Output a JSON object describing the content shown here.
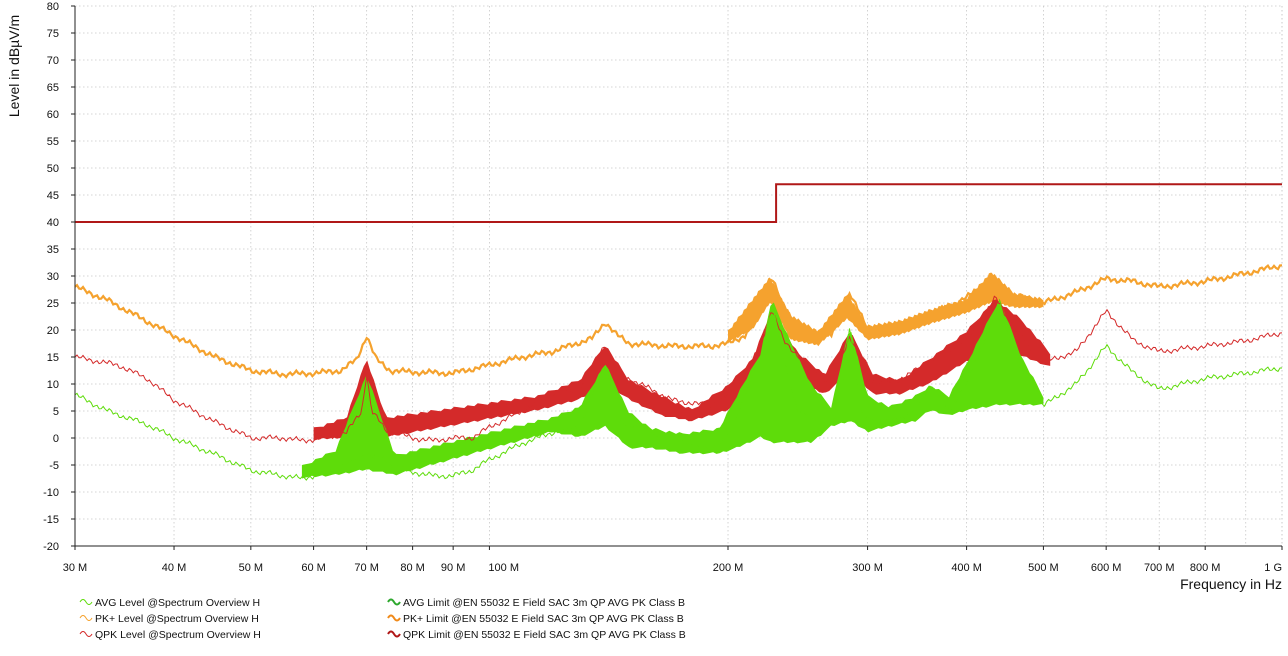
{
  "chart_data": {
    "type": "line",
    "title": "",
    "xlabel": "Frequency in Hz",
    "ylabel": "Level in dBµV/m",
    "xscale": "log",
    "xlim": [
      30000000,
      1000000000
    ],
    "ylim": [
      -20,
      80
    ],
    "grid": true,
    "y_ticks": [
      -20,
      -15,
      -10,
      -5,
      0,
      5,
      10,
      15,
      20,
      25,
      30,
      35,
      40,
      45,
      50,
      55,
      60,
      65,
      70,
      75,
      80
    ],
    "x_ticks": [
      {
        "value": 30000000,
        "label": "30 M"
      },
      {
        "value": 40000000,
        "label": "40 M"
      },
      {
        "value": 50000000,
        "label": "50 M"
      },
      {
        "value": 60000000,
        "label": "60 M"
      },
      {
        "value": 70000000,
        "label": "70 M"
      },
      {
        "value": 80000000,
        "label": "80 M"
      },
      {
        "value": 90000000,
        "label": "90 M"
      },
      {
        "value": 100000000,
        "label": "100 M"
      },
      {
        "value": 200000000,
        "label": "200 M"
      },
      {
        "value": 300000000,
        "label": "300 M"
      },
      {
        "value": 400000000,
        "label": "400 M"
      },
      {
        "value": 500000000,
        "label": "500 M"
      },
      {
        "value": 600000000,
        "label": "600 M"
      },
      {
        "value": 700000000,
        "label": "700 M"
      },
      {
        "value": 800000000,
        "label": "800 M"
      },
      {
        "value": 1000000000,
        "label": "1 G"
      }
    ],
    "series": [
      {
        "name": "PK+ Level @Spectrum Overview H",
        "kind": "level",
        "color": "#f5a22e",
        "points": [
          [
            30,
            28
          ],
          [
            33,
            25.5
          ],
          [
            36,
            22.5
          ],
          [
            40,
            19
          ],
          [
            45,
            15
          ],
          [
            50,
            12.5
          ],
          [
            55,
            11.8
          ],
          [
            60,
            12
          ],
          [
            65,
            12.5
          ],
          [
            68,
            14.5
          ],
          [
            70,
            19
          ],
          [
            72,
            14.5
          ],
          [
            75,
            12.5
          ],
          [
            80,
            12.2
          ],
          [
            90,
            12
          ],
          [
            100,
            13.5
          ],
          [
            110,
            15
          ],
          [
            120,
            16
          ],
          [
            135,
            18.5
          ],
          [
            140,
            21.5
          ],
          [
            145,
            19
          ],
          [
            150,
            17.5
          ],
          [
            170,
            17
          ],
          [
            190,
            17
          ],
          [
            200,
            17.5
          ],
          [
            210,
            19
          ],
          [
            220,
            24
          ],
          [
            227,
            30
          ],
          [
            235,
            24
          ],
          [
            250,
            20
          ],
          [
            270,
            19
          ],
          [
            285,
            27
          ],
          [
            300,
            20
          ],
          [
            320,
            20
          ],
          [
            350,
            22
          ],
          [
            400,
            26
          ],
          [
            430,
            29.5
          ],
          [
            445,
            27
          ],
          [
            500,
            25
          ],
          [
            550,
            27
          ],
          [
            600,
            29.5
          ],
          [
            650,
            29
          ],
          [
            700,
            28
          ],
          [
            800,
            29
          ],
          [
            900,
            30.5
          ],
          [
            1000,
            32
          ]
        ],
        "envelope": [
          [
            200,
            17.5,
            20
          ],
          [
            215,
            20,
            26
          ],
          [
            226,
            25,
            30
          ],
          [
            240,
            18,
            23
          ],
          [
            260,
            17,
            20
          ],
          [
            283,
            22,
            27
          ],
          [
            300,
            18,
            21
          ],
          [
            330,
            19,
            22
          ],
          [
            360,
            21,
            24
          ],
          [
            400,
            23,
            26
          ],
          [
            430,
            25,
            31
          ],
          [
            460,
            24,
            27
          ],
          [
            500,
            24,
            26
          ]
        ]
      },
      {
        "name": "QPK Level @Spectrum Overview H",
        "kind": "level",
        "color": "#d42a2a",
        "points": [
          [
            30,
            15
          ],
          [
            34,
            13.5
          ],
          [
            37,
            11
          ],
          [
            40,
            7
          ],
          [
            45,
            3
          ],
          [
            50,
            0
          ],
          [
            55,
            0
          ],
          [
            58,
            -0.5
          ],
          [
            62,
            0
          ],
          [
            66,
            1
          ],
          [
            69,
            5
          ],
          [
            70,
            12
          ],
          [
            71,
            5
          ],
          [
            74,
            1.5
          ],
          [
            80,
            0
          ],
          [
            85,
            -0.5
          ],
          [
            90,
            0
          ],
          [
            95,
            0
          ],
          [
            100,
            2
          ],
          [
            110,
            5
          ],
          [
            120,
            8
          ],
          [
            130,
            9
          ],
          [
            140,
            17.5
          ],
          [
            145,
            12
          ],
          [
            160,
            9
          ],
          [
            170,
            7
          ],
          [
            190,
            6
          ],
          [
            200,
            8
          ],
          [
            210,
            12
          ],
          [
            220,
            17
          ],
          [
            227,
            24
          ],
          [
            235,
            18
          ],
          [
            250,
            14
          ],
          [
            270,
            10
          ],
          [
            285,
            19
          ],
          [
            300,
            11
          ],
          [
            320,
            10
          ],
          [
            350,
            13
          ],
          [
            400,
            18
          ],
          [
            435,
            26
          ],
          [
            460,
            20
          ],
          [
            500,
            14
          ],
          [
            550,
            16
          ],
          [
            600,
            23.5
          ],
          [
            650,
            18
          ],
          [
            700,
            16
          ],
          [
            800,
            17
          ],
          [
            900,
            18
          ],
          [
            1000,
            19.5
          ]
        ],
        "envelope": [
          [
            60,
            -0.5,
            2
          ],
          [
            66,
            0,
            4
          ],
          [
            70,
            2,
            15
          ],
          [
            74,
            0,
            4
          ],
          [
            115,
            5,
            8
          ],
          [
            130,
            7,
            11
          ],
          [
            140,
            10,
            17.5
          ],
          [
            150,
            7,
            11
          ],
          [
            165,
            4,
            8
          ],
          [
            180,
            3,
            5.5
          ],
          [
            200,
            5,
            10
          ],
          [
            215,
            9,
            15
          ],
          [
            227,
            14,
            24
          ],
          [
            245,
            10,
            16
          ],
          [
            265,
            8,
            12
          ],
          [
            285,
            12,
            20
          ],
          [
            305,
            8,
            12
          ],
          [
            330,
            8,
            11
          ],
          [
            360,
            10,
            15
          ],
          [
            400,
            14,
            20
          ],
          [
            435,
            16,
            26
          ],
          [
            470,
            15,
            22
          ],
          [
            510,
            13,
            16
          ]
        ]
      },
      {
        "name": "AVG Level @Spectrum Overview H",
        "kind": "level",
        "color": "#5edc0a",
        "points": [
          [
            30,
            8
          ],
          [
            33,
            5
          ],
          [
            37,
            2.5
          ],
          [
            40,
            0
          ],
          [
            45,
            -3
          ],
          [
            50,
            -6
          ],
          [
            55,
            -7
          ],
          [
            58,
            -7.5
          ],
          [
            62,
            -6.5
          ],
          [
            66,
            -5
          ],
          [
            70,
            -3
          ],
          [
            74,
            -4
          ],
          [
            78,
            -6
          ],
          [
            85,
            -7
          ],
          [
            90,
            -7
          ],
          [
            95,
            -6
          ],
          [
            100,
            -4
          ],
          [
            110,
            -1
          ],
          [
            120,
            1
          ],
          [
            130,
            2
          ],
          [
            140,
            14
          ],
          [
            145,
            3
          ],
          [
            155,
            2
          ],
          [
            165,
            0
          ],
          [
            180,
            -1
          ],
          [
            190,
            -2
          ],
          [
            200,
            0
          ],
          [
            210,
            8
          ],
          [
            220,
            15
          ],
          [
            227,
            25
          ],
          [
            235,
            15
          ],
          [
            245,
            5
          ],
          [
            260,
            3
          ],
          [
            275,
            3
          ],
          [
            285,
            21
          ],
          [
            295,
            4
          ],
          [
            320,
            3
          ],
          [
            345,
            5
          ],
          [
            360,
            10
          ],
          [
            380,
            5
          ],
          [
            400,
            10
          ],
          [
            440,
            25
          ],
          [
            460,
            15
          ],
          [
            480,
            9
          ],
          [
            500,
            6
          ],
          [
            550,
            10
          ],
          [
            600,
            17
          ],
          [
            650,
            12
          ],
          [
            700,
            9
          ],
          [
            800,
            11
          ],
          [
            900,
            12
          ],
          [
            1000,
            13
          ]
        ],
        "envelope": [
          [
            58,
            -7.5,
            -5
          ],
          [
            64,
            -7,
            -2
          ],
          [
            70,
            -6,
            12
          ],
          [
            76,
            -7,
            -3
          ],
          [
            120,
            1,
            4
          ],
          [
            130,
            0,
            6
          ],
          [
            140,
            2,
            14
          ],
          [
            150,
            -2,
            5
          ],
          [
            160,
            -2,
            2
          ],
          [
            175,
            -3,
            1
          ],
          [
            195,
            -3,
            2
          ],
          [
            205,
            -2,
            8
          ],
          [
            220,
            0,
            16
          ],
          [
            227,
            -1,
            26
          ],
          [
            240,
            -1,
            18
          ],
          [
            255,
            -1,
            10
          ],
          [
            270,
            2,
            6
          ],
          [
            285,
            3,
            21
          ],
          [
            300,
            1,
            8
          ],
          [
            320,
            2,
            6
          ],
          [
            345,
            3,
            8
          ],
          [
            360,
            5,
            10
          ],
          [
            380,
            4,
            8
          ],
          [
            400,
            5,
            14
          ],
          [
            440,
            6,
            26
          ],
          [
            470,
            6,
            15
          ],
          [
            500,
            6,
            8
          ]
        ]
      },
      {
        "name": "AVG Limit @EN 55032 E Field SAC 3m QP AVG PK Class B",
        "kind": "limit",
        "color": "#2ea82e",
        "points": []
      },
      {
        "name": "PK+ Limit @EN 55032 E Field SAC 3m QP AVG PK Class B",
        "kind": "limit",
        "color": "#f08a1a",
        "points": []
      },
      {
        "name": "QPK Limit @EN 55032 E Field SAC 3m QP AVG PK Class B",
        "kind": "limit",
        "color": "#b01818",
        "points": [
          [
            30,
            40
          ],
          [
            230,
            40
          ],
          [
            230,
            47
          ],
          [
            1000,
            47
          ]
        ]
      }
    ]
  }
}
